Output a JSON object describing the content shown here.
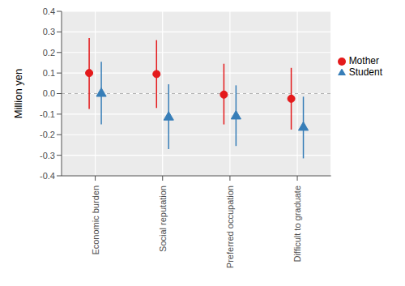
{
  "chart_data": {
    "type": "scatter",
    "y_label": "Million yen",
    "categories": [
      "Economic burden",
      "Social reputation",
      "Preferred occupation",
      "Difficult to graduate"
    ],
    "series": [
      {
        "name": "Mother",
        "color": "#e41a1c",
        "marker": "circle",
        "values": [
          0.1,
          0.095,
          -0.005,
          -0.025
        ],
        "lower": [
          -0.075,
          -0.07,
          -0.15,
          -0.175
        ],
        "upper": [
          0.27,
          0.26,
          0.145,
          0.125
        ]
      },
      {
        "name": "Student",
        "color": "#377eb8",
        "marker": "triangle",
        "values": [
          0.0,
          -0.115,
          -0.11,
          -0.165
        ],
        "lower": [
          -0.15,
          -0.27,
          -0.255,
          -0.315
        ],
        "upper": [
          0.155,
          0.045,
          0.04,
          -0.015
        ]
      }
    ],
    "ylim": [
      -0.4,
      0.4
    ],
    "yticks": [
      -0.4,
      -0.3,
      -0.2,
      -0.1,
      {
        "value": 0,
        "label": "0.0"
      },
      0.1,
      0.2,
      0.3,
      0.4
    ],
    "reference_line": 0,
    "grid": true,
    "legend": "right"
  }
}
